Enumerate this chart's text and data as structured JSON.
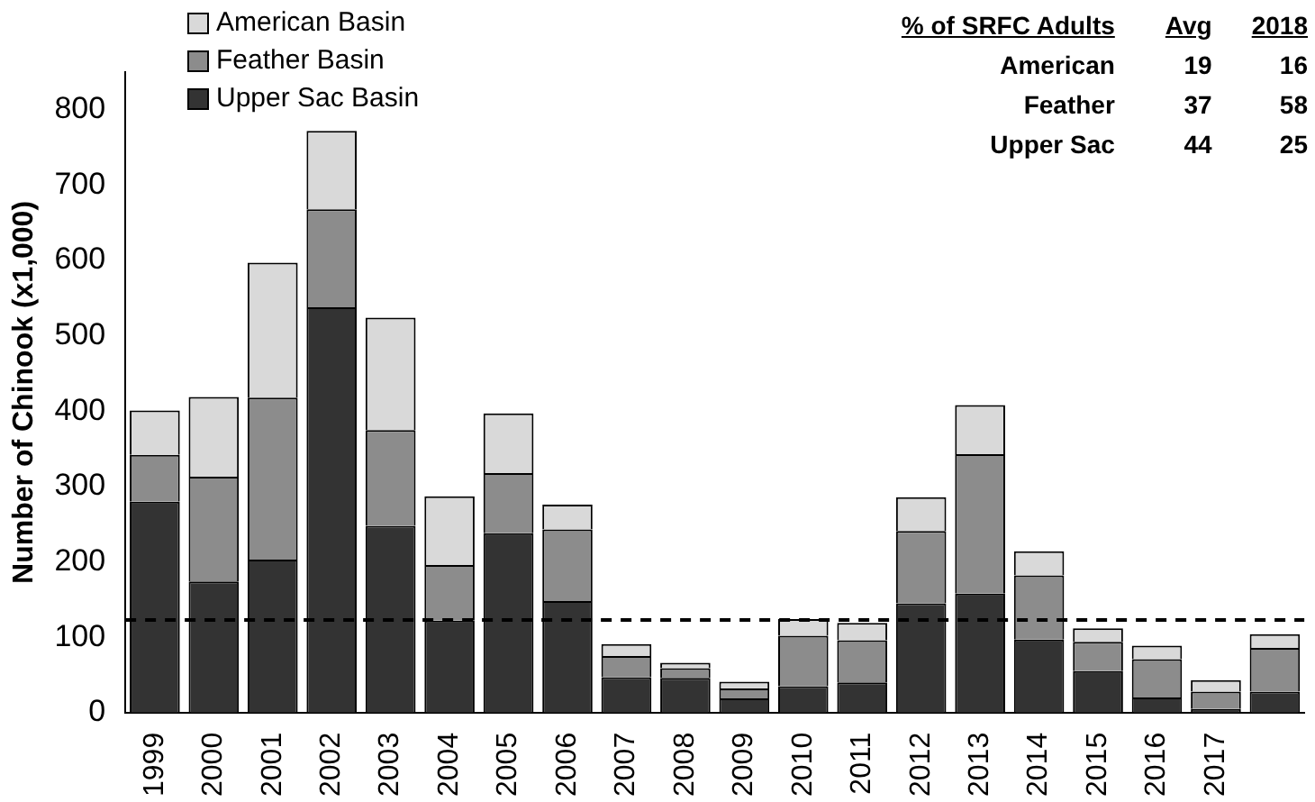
{
  "chart_data": {
    "type": "bar",
    "stacked": true,
    "ylabel": "Number of Chinook (x1,000)",
    "categories": [
      "1999",
      "2000",
      "2001",
      "2002",
      "2003",
      "2004",
      "2005",
      "2006",
      "2007",
      "2008",
      "2009",
      "2010",
      "2011",
      "2012",
      "2013",
      "2014",
      "2015",
      "2016",
      "2017",
      null
    ],
    "series": [
      {
        "name": "Upper Sac Basin",
        "color": "#333333",
        "values": [
          280,
          174,
          203,
          538,
          248,
          122,
          238,
          148,
          47,
          46,
          19,
          35,
          40,
          145,
          158,
          97,
          55,
          20,
          5,
          28
        ]
      },
      {
        "name": "Feather Basin",
        "color": "#8c8c8c",
        "values": [
          62,
          139,
          215,
          130,
          127,
          74,
          80,
          95,
          28,
          13,
          13,
          67,
          56,
          96,
          185,
          85,
          39,
          51,
          23,
          58
        ]
      },
      {
        "name": "American Basin",
        "color": "#d9d9d9",
        "values": [
          59,
          106,
          179,
          104,
          149,
          91,
          79,
          33,
          16,
          7,
          9,
          22,
          23,
          45,
          65,
          32,
          18,
          18,
          15,
          18
        ]
      }
    ],
    "ylim": [
      0,
      850
    ],
    "yticks": [
      0,
      100,
      200,
      300,
      400,
      500,
      600,
      700,
      800
    ],
    "grid": false,
    "legend": "top left",
    "ref_lines": [
      {
        "axis": "y",
        "value": 123,
        "line_style": "dashed",
        "color": "#000000"
      }
    ],
    "annotations": [
      "% of SRFC Adults",
      "Avg",
      "2018",
      "American",
      "19",
      "16",
      "Feather",
      "37",
      "58",
      "Upper Sac",
      "44",
      "25"
    ]
  }
}
